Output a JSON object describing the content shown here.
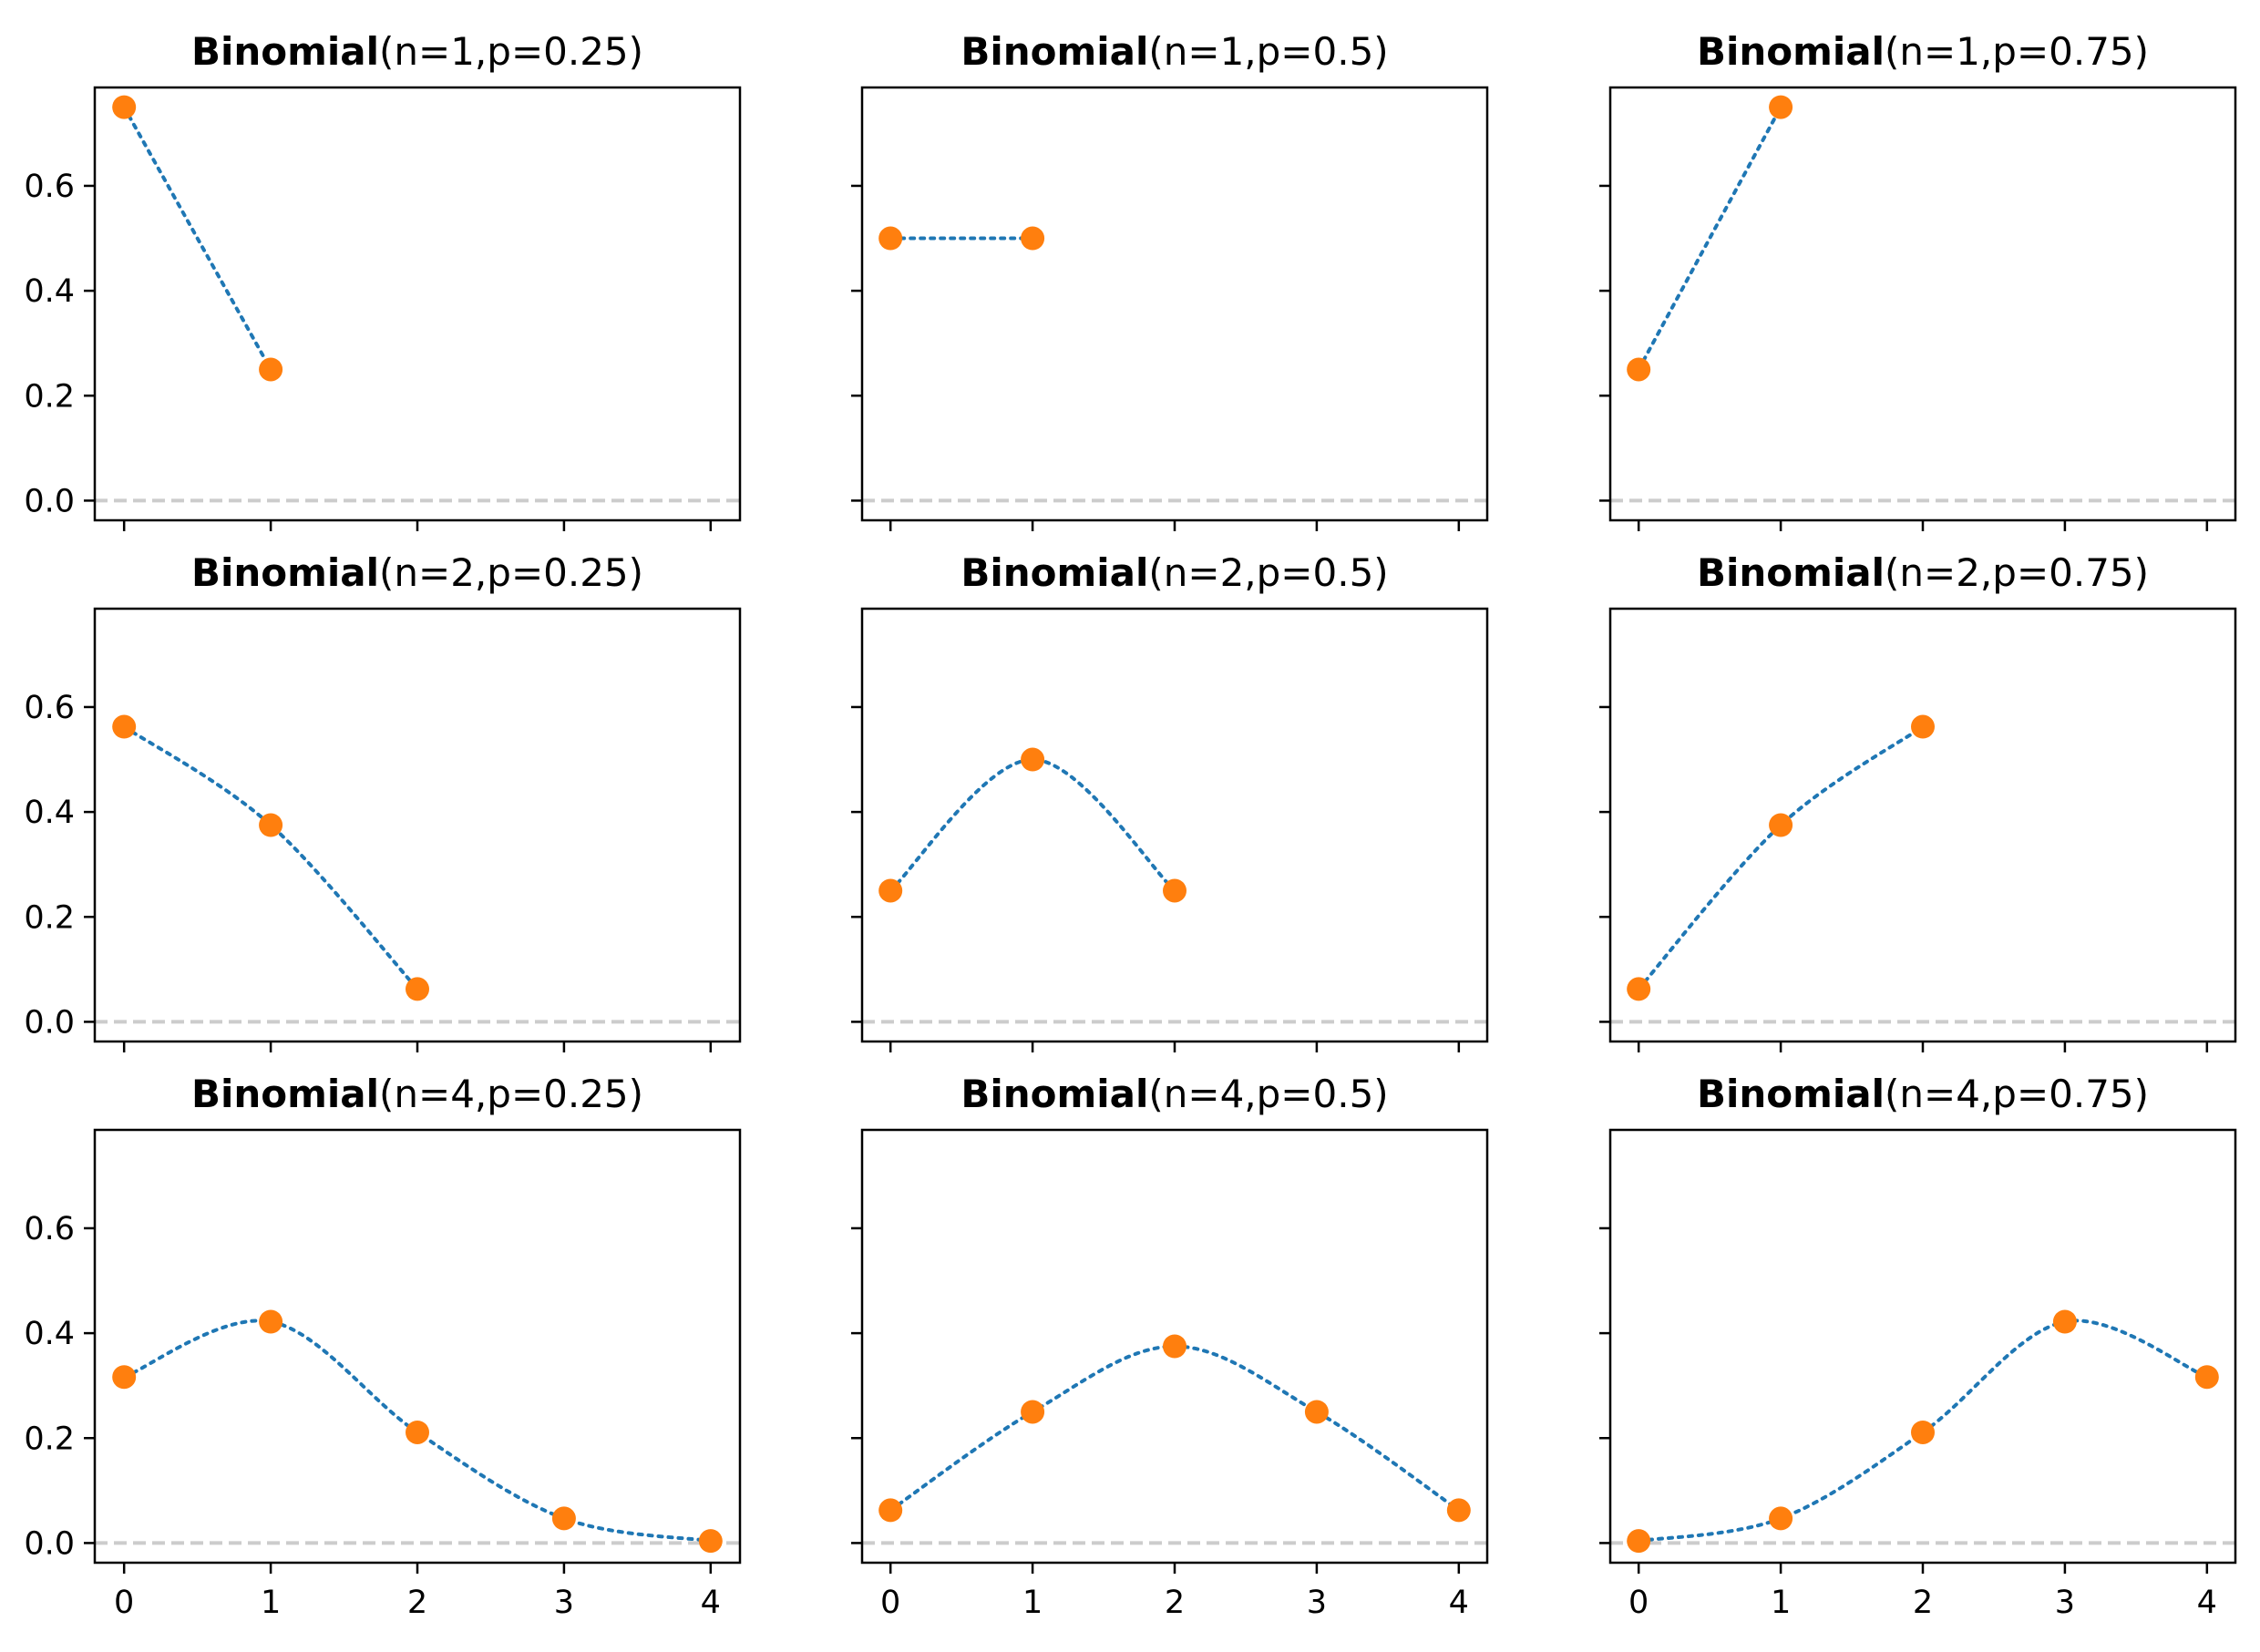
{
  "figure": {
    "title_prefix": "Binomial",
    "colors": {
      "line": "#1f77b4",
      "marker": "#ff7f0e",
      "baseline": "#cccccc",
      "axes": "#000000"
    },
    "shared_axes": {
      "xlim": [
        -0.2,
        4.2
      ],
      "ylim": [
        -0.0375,
        0.7875
      ],
      "xticks": [
        0,
        1,
        2,
        3,
        4
      ],
      "xtick_labels": [
        "0",
        "1",
        "2",
        "3",
        "4"
      ],
      "yticks": [
        0,
        0.2,
        0.4,
        0.6
      ],
      "ytick_labels": [
        "0.0",
        "0.2",
        "0.4",
        "0.6"
      ],
      "xtick_labels_shown_in_bottom_row_only": true,
      "ytick_labels_shown_in_left_column_only": true,
      "baseline_y": 0,
      "grid": false,
      "legend": "none"
    }
  },
  "chart_data": [
    {
      "type": "line",
      "title_params": "(n=1,p=0.25)",
      "x": [
        0,
        1
      ],
      "y": [
        0.75,
        0.25
      ]
    },
    {
      "type": "line",
      "title_params": "(n=1,p=0.5)",
      "x": [
        0,
        1
      ],
      "y": [
        0.5,
        0.5
      ]
    },
    {
      "type": "line",
      "title_params": "(n=1,p=0.75)",
      "x": [
        0,
        1
      ],
      "y": [
        0.25,
        0.75
      ]
    },
    {
      "type": "line",
      "title_params": "(n=2,p=0.25)",
      "x": [
        0,
        1,
        2
      ],
      "y": [
        0.5625,
        0.375,
        0.0625
      ]
    },
    {
      "type": "line",
      "title_params": "(n=2,p=0.5)",
      "x": [
        0,
        1,
        2
      ],
      "y": [
        0.25,
        0.5,
        0.25
      ]
    },
    {
      "type": "line",
      "title_params": "(n=2,p=0.75)",
      "x": [
        0,
        1,
        2
      ],
      "y": [
        0.0625,
        0.375,
        0.5625
      ]
    },
    {
      "type": "line",
      "title_params": "(n=4,p=0.25)",
      "x": [
        0,
        1,
        2,
        3,
        4
      ],
      "y": [
        0.3164,
        0.4219,
        0.2109,
        0.0469,
        0.0039
      ]
    },
    {
      "type": "line",
      "title_params": "(n=4,p=0.5)",
      "x": [
        0,
        1,
        2,
        3,
        4
      ],
      "y": [
        0.0625,
        0.25,
        0.375,
        0.25,
        0.0625
      ]
    },
    {
      "type": "line",
      "title_params": "(n=4,p=0.75)",
      "x": [
        0,
        1,
        2,
        3,
        4
      ],
      "y": [
        0.0039,
        0.0469,
        0.2109,
        0.4219,
        0.3164
      ]
    }
  ]
}
